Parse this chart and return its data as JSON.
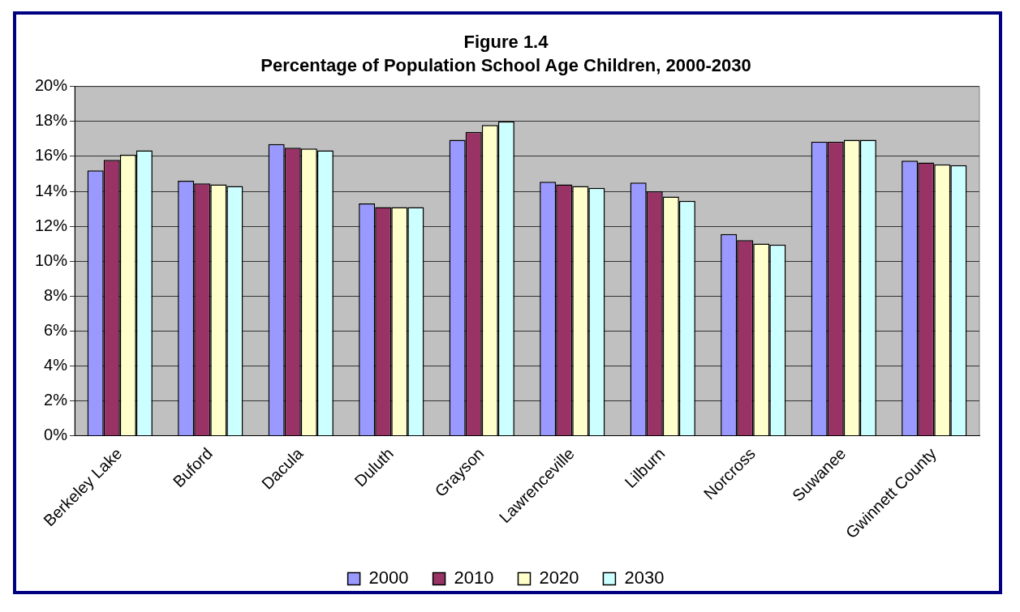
{
  "chart_data": {
    "type": "bar",
    "title": "Figure 1.4",
    "subtitle": "Percentage of Population School Age Children, 2000-2030",
    "categories": [
      "Berkeley Lake",
      "Buford",
      "Dacula",
      "Duluth",
      "Grayson",
      "Lawrenceville",
      "Lilburn",
      "Norcross",
      "Suwanee",
      "Gwinnett County"
    ],
    "series": [
      {
        "name": "2000",
        "color": "#9999ff",
        "values": [
          15.2,
          14.6,
          16.7,
          13.3,
          16.95,
          14.55,
          14.5,
          11.55,
          16.85,
          15.75
        ]
      },
      {
        "name": "2010",
        "color": "#993366",
        "values": [
          15.8,
          14.45,
          16.5,
          13.1,
          17.4,
          14.4,
          14.0,
          11.2,
          16.85,
          15.65
        ]
      },
      {
        "name": "2020",
        "color": "#ffffcc",
        "values": [
          16.1,
          14.4,
          16.45,
          13.1,
          17.8,
          14.3,
          13.7,
          11.0,
          16.95,
          15.55
        ]
      },
      {
        "name": "2030",
        "color": "#ccffff",
        "values": [
          16.35,
          14.3,
          16.35,
          13.1,
          18.0,
          14.2,
          13.45,
          10.95,
          16.95,
          15.5
        ]
      }
    ],
    "ylim": [
      0,
      20
    ],
    "yticks": [
      {
        "value": 0,
        "label": "0%"
      },
      {
        "value": 2,
        "label": "2%"
      },
      {
        "value": 4,
        "label": "4%"
      },
      {
        "value": 6,
        "label": "6%"
      },
      {
        "value": 8,
        "label": "8%"
      },
      {
        "value": 10,
        "label": "10%"
      },
      {
        "value": 12,
        "label": "12%"
      },
      {
        "value": 14,
        "label": "14%"
      },
      {
        "value": 16,
        "label": "16%"
      },
      {
        "value": 18,
        "label": "18%"
      },
      {
        "value": 20,
        "label": "20%"
      }
    ],
    "grid": "y",
    "legend": "bottom"
  }
}
